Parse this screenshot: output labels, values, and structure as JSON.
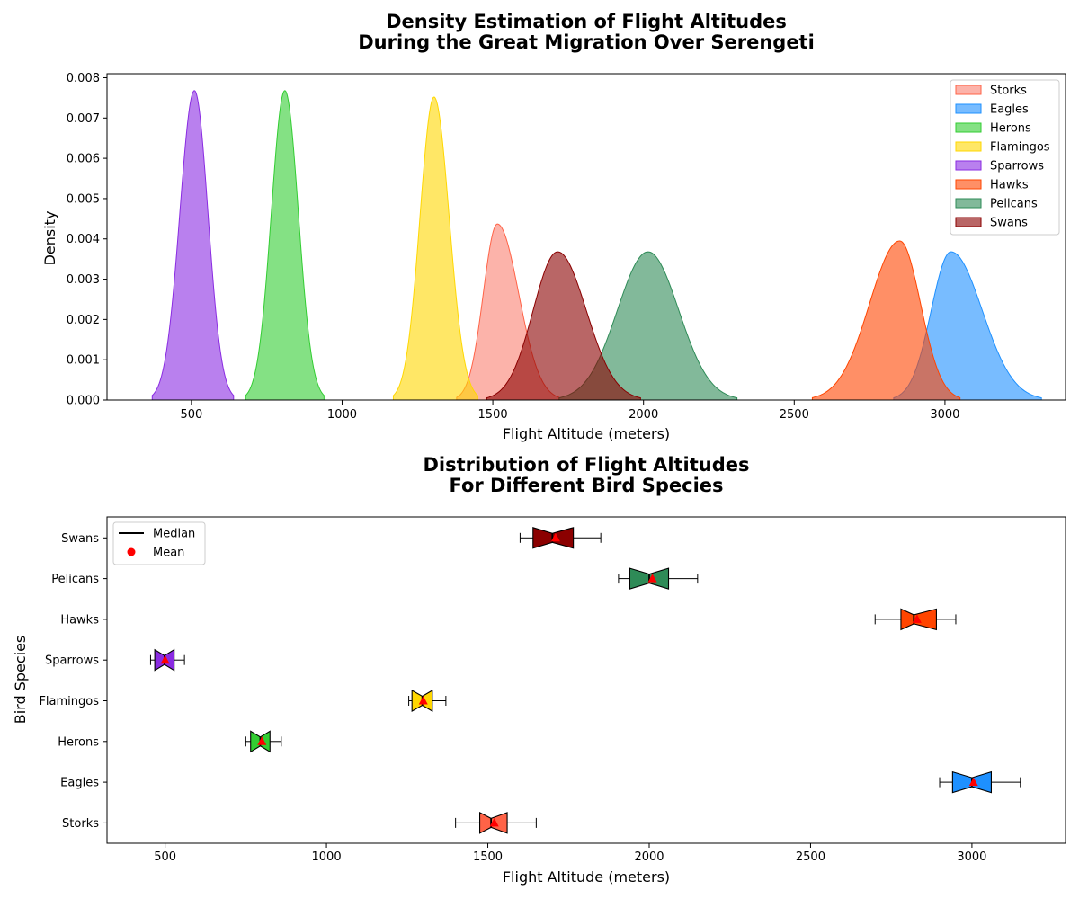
{
  "chart_data": [
    {
      "type": "area",
      "title": "Density Estimation of Flight Altitudes\nDuring the Great Migration Over Serengeti",
      "xlabel": "Flight Altitude (meters)",
      "ylabel": "Density",
      "xlim": [
        220,
        3400
      ],
      "ylim": [
        0,
        0.0081
      ],
      "xticks": [
        500,
        1000,
        1500,
        2000,
        2500,
        3000
      ],
      "yticks": [
        0.0,
        0.001,
        0.002,
        0.003,
        0.004,
        0.005,
        0.006,
        0.007,
        0.008
      ],
      "ytick_labels": [
        "0.000",
        "0.001",
        "0.002",
        "0.003",
        "0.004",
        "0.005",
        "0.006",
        "0.007",
        "0.008"
      ],
      "legend_position": "top-right",
      "series": [
        {
          "name": "Storks",
          "fill": "#FA8072",
          "stroke": "#FF6347",
          "peak_x": 1515,
          "peak_density": 0.00437,
          "range": [
            1380,
            1720
          ]
        },
        {
          "name": "Eagles",
          "fill": "#1E90FF",
          "stroke": "#1E90FF",
          "peak_x": 3020,
          "peak_density": 0.00368,
          "range": [
            2830,
            3320
          ]
        },
        {
          "name": "Herons",
          "fill": "#32CD32",
          "stroke": "#32CD32",
          "peak_x": 810,
          "peak_density": 0.00768,
          "range": [
            680,
            940
          ]
        },
        {
          "name": "Flamingos",
          "fill": "#FFD700",
          "stroke": "#FFD700",
          "peak_x": 1305,
          "peak_density": 0.00752,
          "range": [
            1170,
            1450
          ]
        },
        {
          "name": "Sparrows",
          "fill": "#8A2BE2",
          "stroke": "#8A2BE2",
          "peak_x": 510,
          "peak_density": 0.00768,
          "range": [
            370,
            640
          ]
        },
        {
          "name": "Hawks",
          "fill": "#FF4500",
          "stroke": "#FF4500",
          "peak_x": 2850,
          "peak_density": 0.00395,
          "range": [
            2560,
            3050
          ]
        },
        {
          "name": "Pelicans",
          "fill": "#2E8B57",
          "stroke": "#2E8B57",
          "peak_x": 2015,
          "peak_density": 0.00368,
          "range": [
            1720,
            2310
          ]
        },
        {
          "name": "Swans",
          "fill": "#8B0000",
          "stroke": "#8B0000",
          "peak_x": 1715,
          "peak_density": 0.00368,
          "range": [
            1480,
            1990
          ]
        }
      ]
    },
    {
      "type": "box",
      "title": "Distribution of Flight Altitudes\nFor Different Bird Species",
      "xlabel": "Flight Altitude (meters)",
      "ylabel": "Bird Species",
      "xlim": [
        320,
        3290
      ],
      "xticks": [
        500,
        1000,
        1500,
        2000,
        2500,
        3000
      ],
      "legend_position": "top-left",
      "legend": [
        {
          "label": "Median",
          "kind": "line",
          "color": "#000000"
        },
        {
          "label": "Mean",
          "kind": "dot",
          "color": "#FF0000"
        }
      ],
      "categories": [
        "Storks",
        "Eagles",
        "Herons",
        "Flamingos",
        "Sparrows",
        "Hawks",
        "Pelicans",
        "Swans"
      ],
      "boxes": [
        {
          "name": "Storks",
          "color": "#FF6347",
          "whisker_low": 1400,
          "q1": 1475,
          "median": 1510,
          "q3": 1560,
          "whisker_high": 1650,
          "mean": 1520
        },
        {
          "name": "Eagles",
          "color": "#1E90FF",
          "whisker_low": 2900,
          "q1": 2940,
          "median": 3000,
          "q3": 3060,
          "whisker_high": 3150,
          "mean": 3005
        },
        {
          "name": "Herons",
          "color": "#32CD32",
          "whisker_low": 750,
          "q1": 765,
          "median": 795,
          "q3": 825,
          "whisker_high": 860,
          "mean": 800
        },
        {
          "name": "Flamingos",
          "color": "#FFD700",
          "whisker_low": 1255,
          "q1": 1265,
          "median": 1297,
          "q3": 1328,
          "whisker_high": 1370,
          "mean": 1300
        },
        {
          "name": "Sparrows",
          "color": "#8A2BE2",
          "whisker_low": 455,
          "q1": 468,
          "median": 498,
          "q3": 528,
          "whisker_high": 560,
          "mean": 500
        },
        {
          "name": "Hawks",
          "color": "#FF4500",
          "whisker_low": 2700,
          "q1": 2780,
          "median": 2820,
          "q3": 2890,
          "whisker_high": 2950,
          "mean": 2830
        },
        {
          "name": "Pelicans",
          "color": "#2E8B57",
          "whisker_low": 1905,
          "q1": 1940,
          "median": 2000,
          "q3": 2060,
          "whisker_high": 2150,
          "mean": 2010
        },
        {
          "name": "Swans",
          "color": "#8B0000",
          "whisker_low": 1600,
          "q1": 1640,
          "median": 1700,
          "q3": 1765,
          "whisker_high": 1850,
          "mean": 1710
        }
      ]
    }
  ]
}
